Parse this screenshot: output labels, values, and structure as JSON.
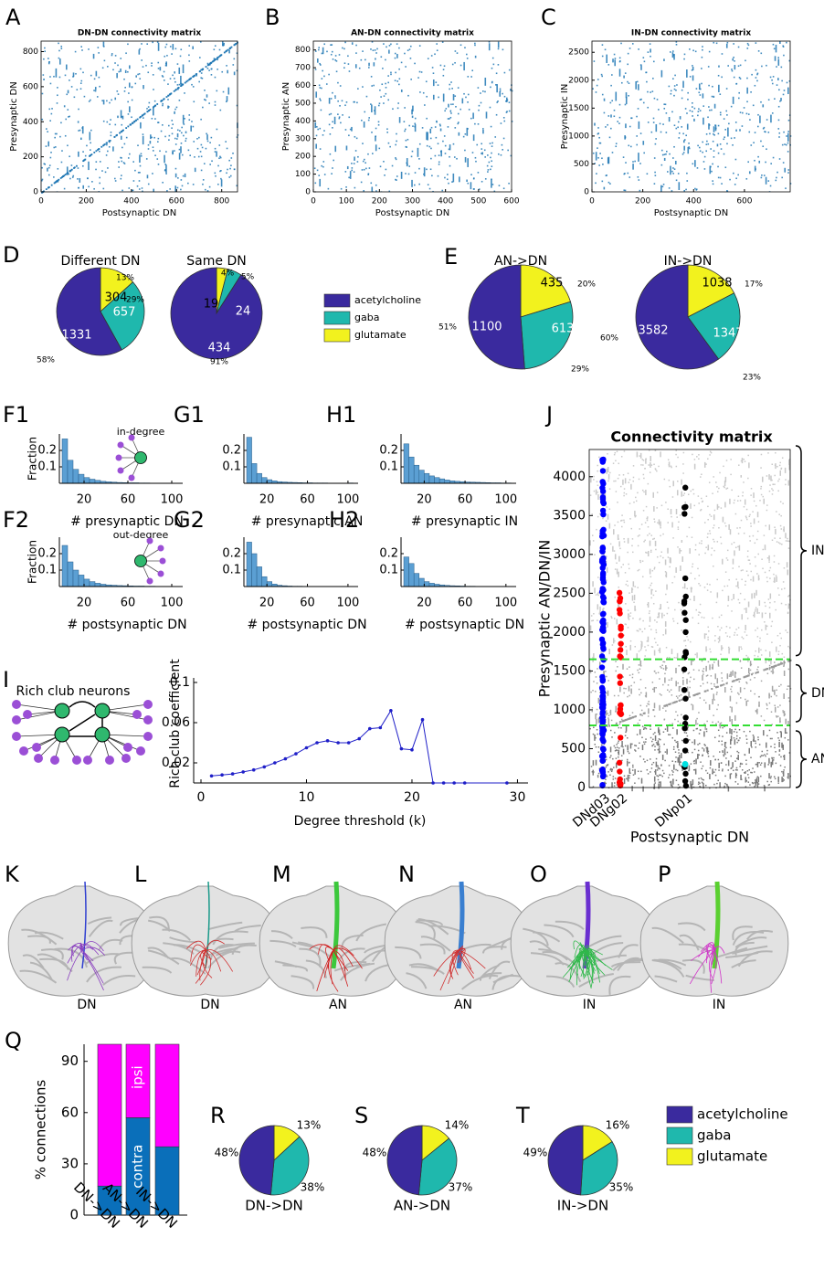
{
  "chart_data": [
    {
      "type": "matrix",
      "panel": "A",
      "title": "DN-DN connectivity matrix",
      "x_label": "Postsynaptic DN",
      "y_label": "Presynaptic DN",
      "xlim": [
        0,
        870
      ],
      "ylim": [
        0,
        860
      ],
      "xticks": [
        0,
        200,
        400,
        600,
        800
      ],
      "yticks": [
        0,
        200,
        400,
        600,
        800
      ],
      "color": "#1f77b4"
    },
    {
      "type": "matrix",
      "panel": "B",
      "title": "AN-DN connectivity matrix",
      "x_label": "Postsynaptic DN",
      "y_label": "Presynaptic AN",
      "xlim": [
        0,
        600
      ],
      "ylim": [
        0,
        850
      ],
      "xticks": [
        0,
        100,
        200,
        300,
        400,
        500,
        600
      ],
      "yticks": [
        0,
        100,
        200,
        300,
        400,
        500,
        600,
        700,
        800
      ],
      "color": "#1f77b4"
    },
    {
      "type": "matrix",
      "panel": "C",
      "title": "IN-DN connectivity matrix",
      "x_label": "Postsynaptic DN",
      "y_label": "Presynaptic IN",
      "xlim": [
        0,
        780
      ],
      "ylim": [
        0,
        2700
      ],
      "xticks": [
        0,
        200,
        400,
        600
      ],
      "yticks": [
        0,
        500,
        1000,
        1500,
        2000,
        2500
      ],
      "color": "#1f77b4"
    },
    {
      "type": "pie",
      "panel": "D",
      "title": "Different DN",
      "values": [
        304,
        657,
        1331
      ],
      "percent_labels": [
        "13%",
        "29%",
        "58%"
      ],
      "colors": [
        "#f2f21e",
        "#1fb8ad",
        "#3a2a9e"
      ]
    },
    {
      "type": "pie",
      "title": "Same DN",
      "values": [
        19,
        24,
        434
      ],
      "percent_labels": [
        "4%",
        "5%",
        "91%"
      ],
      "colors": [
        "#f2f21e",
        "#1fb8ad",
        "#3a2a9e"
      ]
    },
    {
      "type": "legend",
      "names": [
        "acetylcholine",
        "gaba",
        "glutamate"
      ],
      "colors": [
        "#3a2a9e",
        "#1fb8ad",
        "#f2f21e"
      ]
    },
    {
      "type": "pie",
      "panel": "E",
      "title": "AN->DN",
      "values": [
        435,
        613,
        1100
      ],
      "percent_labels": [
        "20%",
        "29%",
        "51%"
      ],
      "colors": [
        "#f2f21e",
        "#1fb8ad",
        "#3a2a9e"
      ]
    },
    {
      "type": "pie",
      "title": "IN->DN",
      "values": [
        1038,
        1347,
        3582
      ],
      "percent_labels": [
        "17%",
        "23%",
        "60%"
      ],
      "colors": [
        "#f2f21e",
        "#1fb8ad",
        "#3a2a9e"
      ]
    },
    {
      "type": "histogram",
      "panel": "F1",
      "x_label": "# presynaptic DN",
      "y_label": "Fraction",
      "inset_label": "in-degree",
      "bins": [
        0,
        5,
        10,
        15,
        20,
        25,
        30,
        35,
        40,
        45,
        50,
        55,
        60,
        65,
        70,
        75,
        80,
        85,
        90,
        95,
        100,
        105,
        110
      ],
      "values": [
        0.27,
        0.14,
        0.085,
        0.055,
        0.035,
        0.025,
        0.018,
        0.012,
        0.009,
        0.007,
        0.005,
        0.004,
        0.003,
        0.003,
        0.002,
        0.002,
        0.001,
        0.001,
        0.001,
        0.001,
        0.001,
        0
      ],
      "xlim": [
        0,
        110
      ],
      "ylim": [
        0,
        0.3
      ],
      "xticks": [
        20,
        60,
        100
      ],
      "yticks": [
        0.1,
        0.2
      ],
      "color": "#5b9fd3"
    },
    {
      "type": "histogram",
      "panel": "G1",
      "x_label": "# presynaptic AN",
      "bins": [
        0,
        5,
        10,
        15,
        20,
        25,
        30,
        35,
        40,
        45,
        50,
        55,
        60,
        65,
        70,
        75,
        80,
        85,
        90,
        95,
        100,
        105,
        110
      ],
      "values": [
        0.28,
        0.12,
        0.06,
        0.035,
        0.022,
        0.015,
        0.01,
        0.008,
        0.006,
        0.005,
        0.004,
        0.003,
        0.003,
        0.002,
        0.002,
        0.002,
        0.001,
        0.001,
        0.001,
        0.001,
        0.002,
        0
      ],
      "xlim": [
        0,
        110
      ],
      "ylim": [
        0,
        0.3
      ],
      "xticks": [
        20,
        60,
        100
      ],
      "yticks": [
        0.1,
        0.2
      ],
      "color": "#5b9fd3"
    },
    {
      "type": "histogram",
      "panel": "H1",
      "x_label": "# presynaptic IN",
      "bins": [
        0,
        5,
        10,
        15,
        20,
        25,
        30,
        35,
        40,
        45,
        50,
        55,
        60,
        65,
        70,
        75,
        80,
        85,
        90,
        95,
        100,
        105,
        110
      ],
      "values": [
        0.24,
        0.16,
        0.11,
        0.08,
        0.06,
        0.045,
        0.035,
        0.027,
        0.02,
        0.015,
        0.012,
        0.01,
        0.008,
        0.007,
        0.006,
        0.005,
        0.004,
        0.003,
        0.003,
        0.002,
        0.002,
        0
      ],
      "xlim": [
        0,
        110
      ],
      "ylim": [
        0,
        0.3
      ],
      "xticks": [
        20,
        60,
        100
      ],
      "yticks": [
        0.1,
        0.2
      ],
      "color": "#5b9fd3"
    },
    {
      "type": "histogram",
      "panel": "F2",
      "x_label": "# postsynaptic DN",
      "y_label": "Fraction",
      "inset_label": "out-degree",
      "bins": [
        0,
        5,
        10,
        15,
        20,
        25,
        30,
        35,
        40,
        45,
        50,
        55,
        60,
        65,
        70,
        75,
        80,
        85,
        90,
        95,
        100,
        105,
        110
      ],
      "values": [
        0.25,
        0.15,
        0.1,
        0.07,
        0.045,
        0.03,
        0.02,
        0.014,
        0.01,
        0.008,
        0.006,
        0.005,
        0.004,
        0.003,
        0.003,
        0.002,
        0.002,
        0.001,
        0.001,
        0.001,
        0.001,
        0
      ],
      "xlim": [
        0,
        110
      ],
      "ylim": [
        0,
        0.3
      ],
      "xticks": [
        20,
        60,
        100
      ],
      "yticks": [
        0.1,
        0.2
      ],
      "color": "#5b9fd3"
    },
    {
      "type": "histogram",
      "panel": "G2",
      "x_label": "# postsynaptic DN",
      "bins": [
        0,
        5,
        10,
        15,
        20,
        25,
        30,
        35,
        40,
        45,
        50,
        55,
        60,
        65,
        70,
        75,
        80,
        85,
        90,
        95,
        100,
        105,
        110
      ],
      "values": [
        0.27,
        0.2,
        0.12,
        0.06,
        0.03,
        0.015,
        0.008,
        0.005,
        0.003,
        0.002,
        0.002,
        0.001,
        0.001,
        0.001,
        0,
        0,
        0,
        0,
        0,
        0,
        0,
        0
      ],
      "xlim": [
        0,
        110
      ],
      "ylim": [
        0,
        0.3
      ],
      "xticks": [
        20,
        60,
        100
      ],
      "yticks": [
        0.1,
        0.2
      ],
      "color": "#5b9fd3"
    },
    {
      "type": "histogram",
      "panel": "H2",
      "x_label": "# postsynaptic DN",
      "bins": [
        0,
        5,
        10,
        15,
        20,
        25,
        30,
        35,
        40,
        45,
        50,
        55,
        60,
        65,
        70,
        75,
        80,
        85,
        90,
        95,
        100,
        105,
        110
      ],
      "values": [
        0.18,
        0.14,
        0.08,
        0.05,
        0.03,
        0.02,
        0.014,
        0.01,
        0.007,
        0.005,
        0.004,
        0.003,
        0.002,
        0.002,
        0.001,
        0.001,
        0.001,
        0,
        0,
        0,
        0,
        0
      ],
      "xlim": [
        0,
        110
      ],
      "ylim": [
        0,
        0.3
      ],
      "xticks": [
        20,
        60,
        100
      ],
      "yticks": [
        0.1,
        0.2
      ],
      "color": "#5b9fd3"
    },
    {
      "type": "line",
      "panel": "I",
      "diagram_label": "Rich club neurons",
      "x_label": "Degree threshold (k)",
      "y_label": "Rich club coefficient",
      "x": [
        1,
        2,
        3,
        4,
        5,
        6,
        7,
        8,
        9,
        10,
        11,
        12,
        13,
        14,
        15,
        16,
        17,
        18,
        19,
        20,
        21,
        22,
        23,
        24,
        25,
        29
      ],
      "values": [
        0.007,
        0.008,
        0.009,
        0.011,
        0.013,
        0.016,
        0.02,
        0.024,
        0.029,
        0.035,
        0.04,
        0.042,
        0.04,
        0.04,
        0.044,
        0.054,
        0.055,
        0.072,
        0.034,
        0.033,
        0.063,
        0,
        0,
        0,
        0,
        0
      ],
      "xlim": [
        0,
        31
      ],
      "ylim": [
        0,
        0.1
      ],
      "xticks": [
        0,
        10,
        20,
        30
      ],
      "yticks": [
        0.02,
        0.06,
        0.1
      ],
      "color": "#1f1fc8"
    },
    {
      "type": "scatter",
      "panel": "J",
      "title": "Connectivity matrix",
      "x_label": "Postsynaptic DN",
      "y_label": "Presynaptic AN/DN/IN",
      "categories": [
        "DNd03",
        "DNg02",
        "DNp01"
      ],
      "ylim": [
        0,
        4350
      ],
      "yticks": [
        0,
        500,
        1000,
        1500,
        2000,
        2500,
        3000,
        3500,
        4000
      ],
      "section_boundaries": [
        800,
        1650
      ],
      "sections": [
        "AN",
        "DN",
        "IN"
      ],
      "colors": [
        "#0000ff",
        "#ff0000",
        "#000000"
      ]
    },
    {
      "type": "stacked_bar",
      "panel": "Q",
      "y_label": "% connections",
      "categories": [
        "DN->DN",
        "AN->DN",
        "IN->DN"
      ],
      "series": [
        {
          "name": "contra",
          "color": "#0a6fba",
          "values": [
            17,
            57,
            40
          ]
        },
        {
          "name": "ipsi",
          "color": "#ff00ff",
          "values": [
            83,
            43,
            60
          ]
        }
      ],
      "ylim": [
        0,
        100
      ],
      "yticks": [
        0,
        30,
        60,
        90
      ]
    },
    {
      "type": "pie",
      "panel": "R",
      "title": "DN->DN",
      "values": [
        13,
        38,
        48
      ],
      "value_labels": [
        "13%",
        "38%",
        "48%"
      ],
      "colors": [
        "#f2f21e",
        "#1fb8ad",
        "#3a2a9e"
      ]
    },
    {
      "type": "pie",
      "panel": "S",
      "title": "AN->DN",
      "values": [
        14,
        37,
        48
      ],
      "value_labels": [
        "14%",
        "37%",
        "48%"
      ],
      "colors": [
        "#f2f21e",
        "#1fb8ad",
        "#3a2a9e"
      ]
    },
    {
      "type": "pie",
      "panel": "T",
      "title": "IN->DN",
      "values": [
        16,
        35,
        49
      ],
      "value_labels": [
        "16%",
        "35%",
        "49%"
      ],
      "colors": [
        "#f2f21e",
        "#1fb8ad",
        "#3a2a9e"
      ]
    },
    {
      "type": "legend",
      "names": [
        "acetylcholine",
        "gaba",
        "glutamate"
      ],
      "colors": [
        "#3a2a9e",
        "#1fb8ad",
        "#f2f21e"
      ]
    }
  ],
  "anatomy": [
    {
      "panel": "K",
      "label": "DN"
    },
    {
      "panel": "L",
      "label": "DN"
    },
    {
      "panel": "M",
      "label": "AN"
    },
    {
      "panel": "N",
      "label": "AN"
    },
    {
      "panel": "O",
      "label": "IN"
    },
    {
      "panel": "P",
      "label": "IN"
    }
  ]
}
